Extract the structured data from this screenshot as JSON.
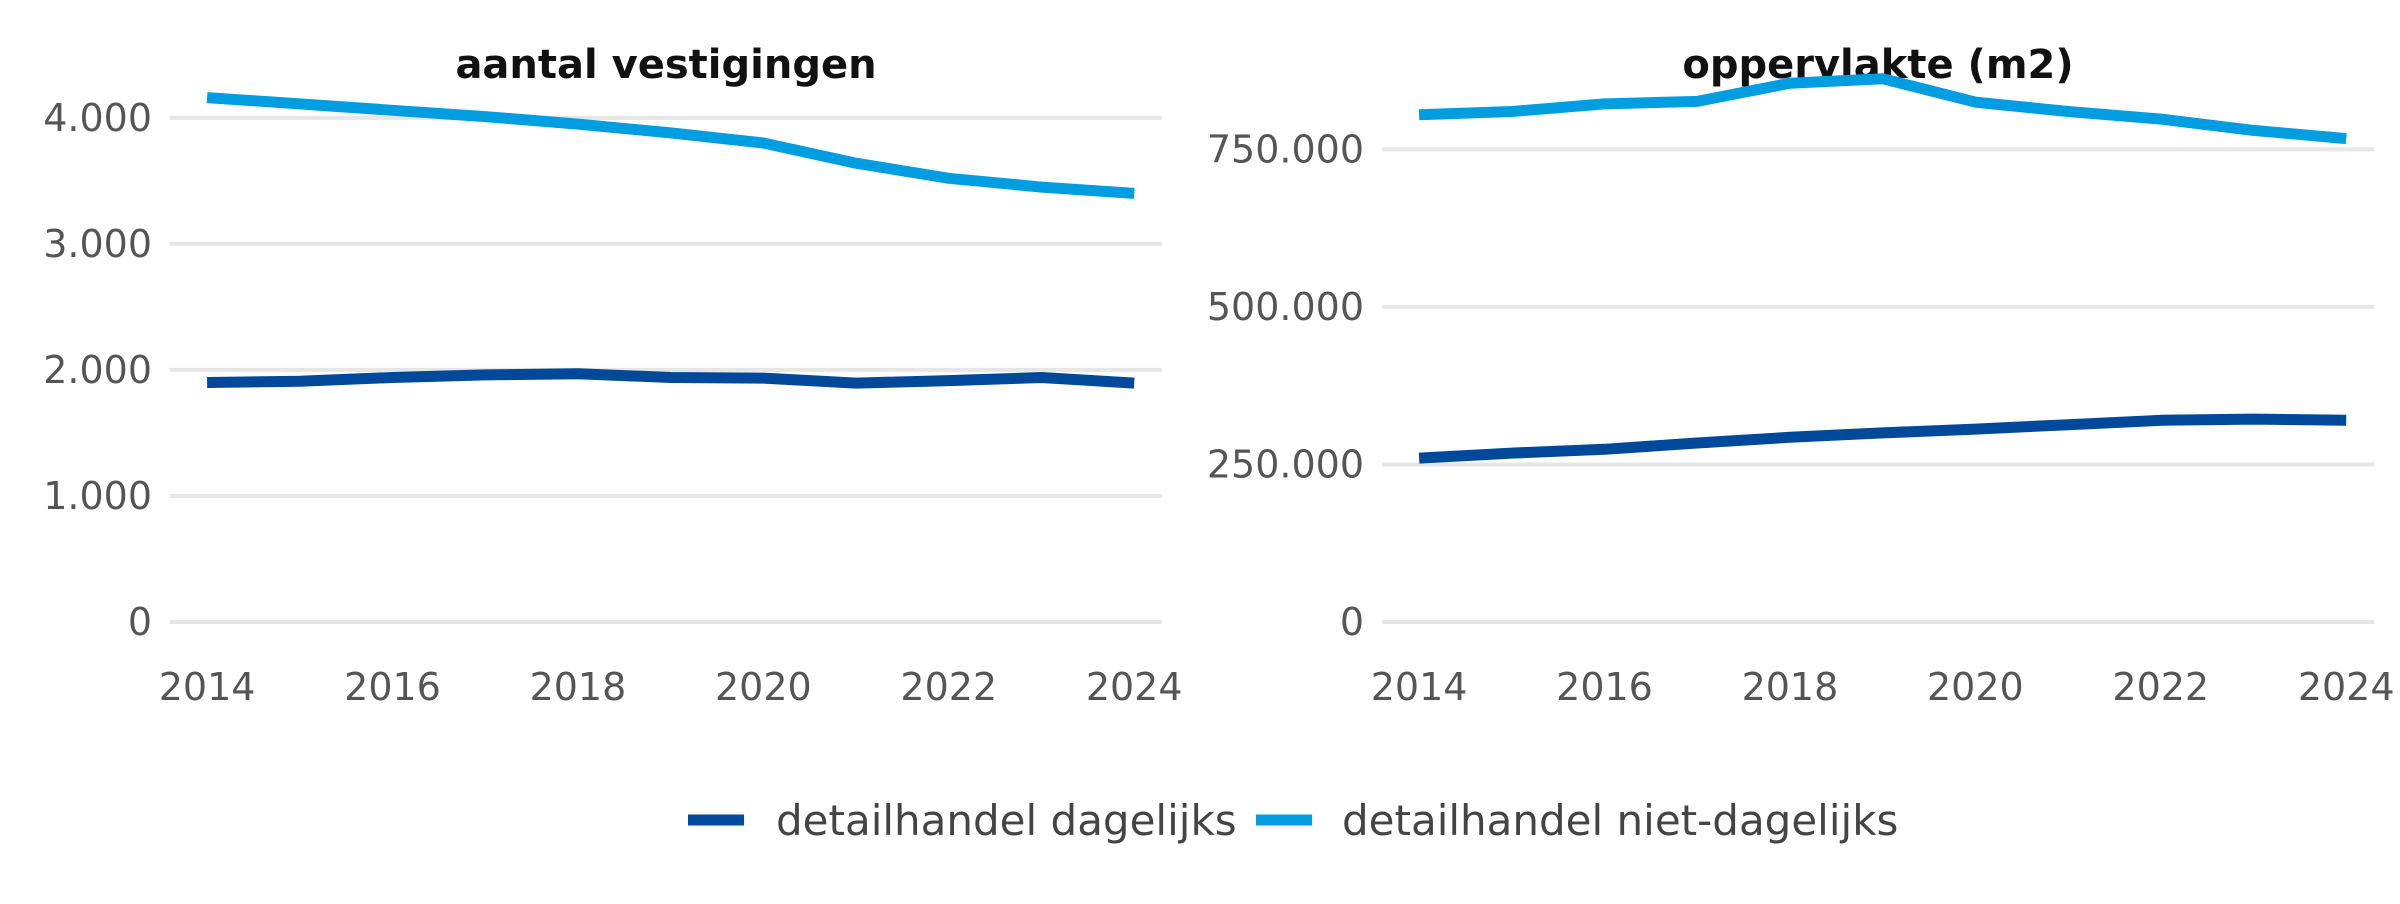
{
  "chart_data": [
    {
      "type": "line",
      "title": "aantal vestigingen",
      "xlabel": "",
      "ylabel": "",
      "x": [
        2014,
        2015,
        2016,
        2017,
        2018,
        2019,
        2020,
        2021,
        2022,
        2023,
        2024
      ],
      "xticks": [
        "2014",
        "2016",
        "2018",
        "2020",
        "2022",
        "2024"
      ],
      "xtick_values": [
        2014,
        2016,
        2018,
        2020,
        2022,
        2024
      ],
      "xlim": [
        2013.6,
        2024.3
      ],
      "ylim": [
        0,
        4300
      ],
      "yticks": [
        "0",
        "1.000",
        "2.000",
        "3.000",
        "4.000"
      ],
      "ytick_values": [
        0,
        1000,
        2000,
        3000,
        4000
      ],
      "grid": true,
      "series": [
        {
          "name": "detailhandel dagelijks",
          "color": "#00489a",
          "values": [
            1900,
            1910,
            1940,
            1960,
            1970,
            1940,
            1935,
            1895,
            1915,
            1940,
            1895
          ]
        },
        {
          "name": "detailhandel niet-dagelijks",
          "color": "#009de0",
          "values": [
            4160,
            4110,
            4060,
            4010,
            3950,
            3880,
            3800,
            3640,
            3520,
            3450,
            3400
          ]
        }
      ]
    },
    {
      "type": "line",
      "title": "oppervlakte (m2)",
      "xlabel": "",
      "ylabel": "",
      "x": [
        2014,
        2015,
        2016,
        2017,
        2018,
        2019,
        2020,
        2021,
        2022,
        2023,
        2024
      ],
      "xticks": [
        "2014",
        "2016",
        "2018",
        "2020",
        "2022",
        "2024"
      ],
      "xtick_values": [
        2014,
        2016,
        2018,
        2020,
        2022,
        2024
      ],
      "xlim": [
        2013.6,
        2024.3
      ],
      "ylim": [
        0,
        860000
      ],
      "yticks": [
        "0",
        "250.000",
        "500.000",
        "750.000"
      ],
      "ytick_values": [
        0,
        250000,
        500000,
        750000
      ],
      "grid": true,
      "series": [
        {
          "name": "detailhandel dagelijks",
          "color": "#00489a",
          "values": [
            260000,
            268000,
            274000,
            284000,
            293000,
            300000,
            306000,
            313000,
            320000,
            322000,
            320000
          ]
        },
        {
          "name": "detailhandel niet-dagelijks",
          "color": "#009de0",
          "values": [
            805000,
            810000,
            822000,
            826000,
            855000,
            862000,
            825000,
            810000,
            798000,
            780000,
            767000
          ]
        }
      ]
    }
  ],
  "legend": {
    "placement": "bottom",
    "items": [
      {
        "label": "detailhandel dagelijks",
        "color": "#00489a"
      },
      {
        "label": "detailhandel niet-dagelijks",
        "color": "#009de0"
      }
    ]
  }
}
